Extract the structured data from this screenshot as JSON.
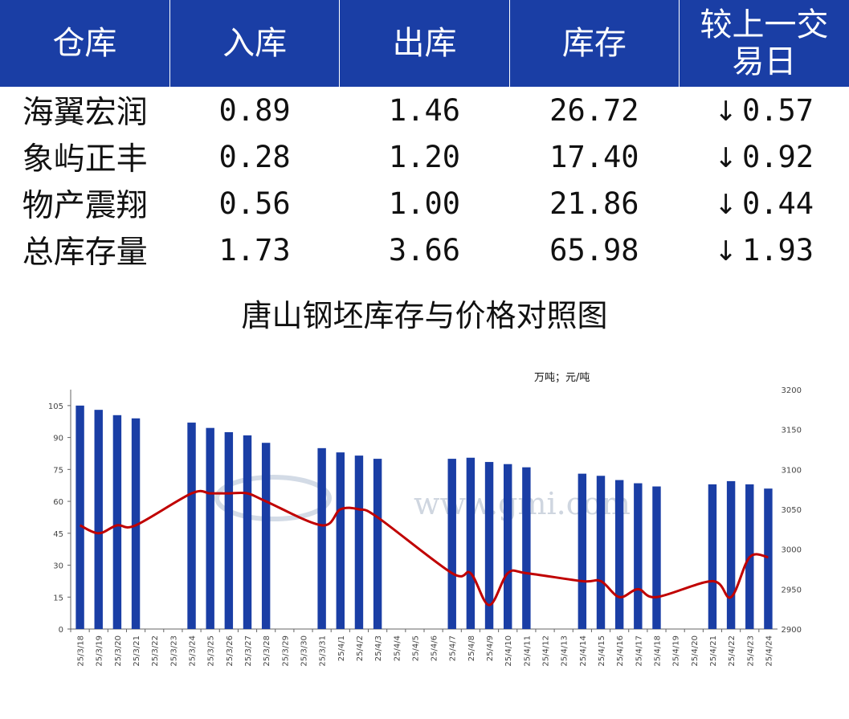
{
  "table": {
    "headers": [
      "仓库",
      "入库",
      "出库",
      "库存",
      "较上一交易日"
    ],
    "rows": [
      {
        "name": "海翼宏润",
        "in": "0.89",
        "out": "1.46",
        "stock": "26.72",
        "arrow": "↓",
        "change": "0.57"
      },
      {
        "name": "象屿正丰",
        "in": "0.28",
        "out": "1.20",
        "stock": "17.40",
        "arrow": "↓",
        "change": "0.92"
      },
      {
        "name": "物产震翔",
        "in": "0.56",
        "out": "1.00",
        "stock": "21.86",
        "arrow": "↓",
        "change": "0.44"
      },
      {
        "name": "总库存量",
        "in": "1.73",
        "out": "3.66",
        "stock": "65.98",
        "arrow": "↓",
        "change": "1.93"
      }
    ]
  },
  "colors": {
    "header_bg": "#1a3ea5",
    "bar": "#1a3ea5",
    "line": "#c00000",
    "down": "#0b8a0b"
  },
  "watermark": "www.gmi.com",
  "chart_data": {
    "type": "bar",
    "title": "唐山钢坯库存与价格对照图",
    "unit_label": "万吨；元/吨",
    "categories": [
      "25/3/18",
      "25/3/19",
      "25/3/20",
      "25/3/21",
      "25/3/22",
      "25/3/23",
      "25/3/24",
      "25/3/25",
      "25/3/26",
      "25/3/27",
      "25/3/28",
      "25/3/29",
      "25/3/30",
      "25/3/31",
      "25/4/1",
      "25/4/2",
      "25/4/3",
      "25/4/4",
      "25/4/5",
      "25/4/6",
      "25/4/7",
      "25/4/8",
      "25/4/9",
      "25/4/10",
      "25/4/11",
      "25/4/12",
      "25/4/13",
      "25/4/14",
      "25/4/15",
      "25/4/16",
      "25/4/17",
      "25/4/18",
      "25/4/19",
      "25/4/20",
      "25/4/21",
      "25/4/22",
      "25/4/23",
      "25/4/24"
    ],
    "series": [
      {
        "name": "",
        "kind": "bar",
        "axis": "left",
        "values": [
          105,
          103,
          100.5,
          99,
          null,
          null,
          97,
          94.5,
          92.5,
          91,
          87.5,
          null,
          null,
          85,
          83,
          81.5,
          80,
          null,
          null,
          null,
          80,
          80.5,
          78.5,
          77.5,
          76,
          null,
          null,
          73,
          72,
          70,
          68.5,
          67,
          null,
          null,
          68,
          69.5,
          68,
          66
        ]
      },
      {
        "name": "",
        "kind": "line",
        "axis": "right",
        "values": [
          3030,
          3020,
          3030,
          3030,
          null,
          null,
          3070,
          3070,
          3070,
          3070,
          3060,
          null,
          null,
          3030,
          3050,
          3050,
          3040,
          null,
          null,
          null,
          2970,
          2970,
          2930,
          2970,
          2970,
          null,
          null,
          2960,
          2960,
          2940,
          2950,
          2940,
          null,
          null,
          2960,
          2940,
          2990,
          2990
        ]
      }
    ],
    "y_left": {
      "min": 0,
      "max": 112.5,
      "ticks": [
        0,
        15,
        30,
        45,
        60,
        75,
        90,
        105
      ]
    },
    "y_right": {
      "min": 2900,
      "max": 3200,
      "ticks": [
        2900,
        2950,
        3000,
        3050,
        3100,
        3150,
        3200
      ]
    },
    "grid": false,
    "legend": "none"
  }
}
